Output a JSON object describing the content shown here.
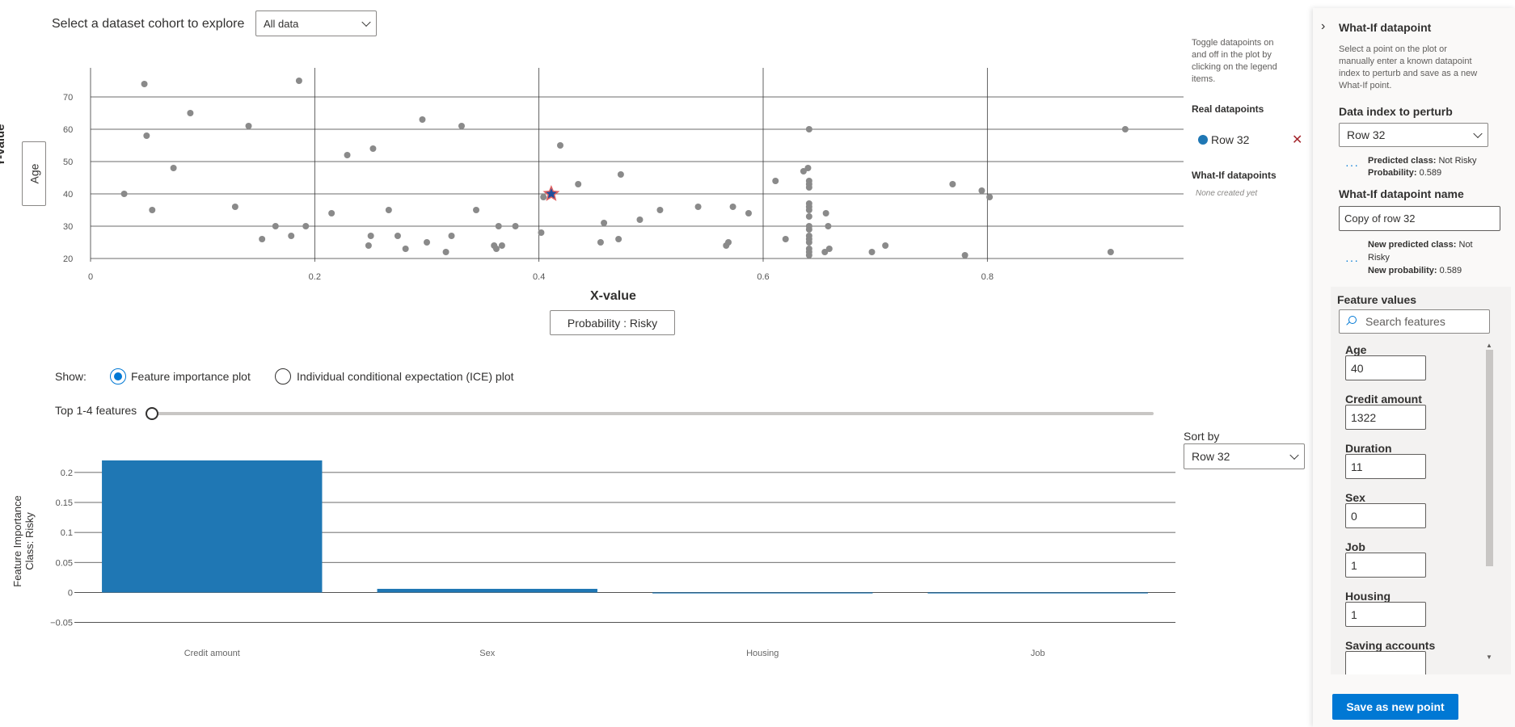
{
  "cohort": {
    "label": "Select a dataset cohort to explore",
    "selected": "All data"
  },
  "scatter": {
    "y_axis_title": "Y-value",
    "y_axis_button": "Age",
    "x_axis_title": "X-value",
    "x_axis_button": "Probability : Risky"
  },
  "legend": {
    "hint": [
      "Toggle datapoints on",
      "and off in the plot by",
      "clicking on the legend",
      "items."
    ],
    "real_heading": "Real datapoints",
    "real_item": "Row 32",
    "whatif_heading": "What-If datapoints",
    "whatif_empty": "None created yet"
  },
  "show": {
    "label": "Show:",
    "option_feature": "Feature importance plot",
    "option_ice": "Individual conditional expectation (ICE) plot",
    "selected": "Feature importance plot"
  },
  "top_features": {
    "label": "Top 1-4 features",
    "value": 0
  },
  "sort": {
    "label": "Sort by",
    "selected": "Row 32"
  },
  "panel": {
    "title": "What-If datapoint",
    "description": [
      "Select a point on the plot or",
      "manually enter a known datapoint",
      "index to perturb and save as a new",
      "What-If point."
    ],
    "data_index_label": "Data index to perturb",
    "data_index_value": "Row 32",
    "pred_class_label": "Predicted class:",
    "pred_class_value": "Not Risky",
    "prob_label": "Probability:",
    "prob_value": "0.589",
    "name_label": "What-If datapoint name",
    "name_value": "Copy of row 32",
    "new_pred_label": "New predicted class:",
    "new_pred_value_1": "Not",
    "new_pred_value_2": "Risky",
    "new_prob_label": "New probability:",
    "new_prob_value": "0.589",
    "feature_values_label": "Feature values",
    "search_placeholder": "Search features",
    "features": [
      {
        "name": "Age",
        "value": "40"
      },
      {
        "name": "Credit amount",
        "value": "1322"
      },
      {
        "name": "Duration",
        "value": "11"
      },
      {
        "name": "Sex",
        "value": "0"
      },
      {
        "name": "Job",
        "value": "1"
      },
      {
        "name": "Housing",
        "value": "1"
      },
      {
        "name": "Saving accounts",
        "value": ""
      }
    ],
    "save_button": "Save as new point"
  },
  "colors": {
    "accent": "#0078d4",
    "bar": "#1f77b4",
    "point": "#8a8a8a",
    "star": "#1f4e9c"
  },
  "chart_data": [
    {
      "type": "scatter",
      "xlabel": "X-value",
      "ylabel": "Y-value",
      "x_ticks": [
        "0",
        "0.2",
        "0.4",
        "0.6",
        "0.8"
      ],
      "y_ticks": [
        "20",
        "30",
        "40",
        "50",
        "60",
        "70"
      ],
      "xlim": [
        0,
        0.975
      ],
      "ylim": [
        19,
        79
      ],
      "highlight": {
        "x": 0.411,
        "y": 40
      },
      "points": [
        [
          0.03,
          40
        ],
        [
          0.048,
          74
        ],
        [
          0.05,
          58
        ],
        [
          0.055,
          35
        ],
        [
          0.074,
          48
        ],
        [
          0.089,
          65
        ],
        [
          0.129,
          36
        ],
        [
          0.141,
          61
        ],
        [
          0.153,
          26
        ],
        [
          0.165,
          30
        ],
        [
          0.179,
          27
        ],
        [
          0.186,
          75
        ],
        [
          0.192,
          30
        ],
        [
          0.215,
          34
        ],
        [
          0.229,
          52
        ],
        [
          0.248,
          24
        ],
        [
          0.25,
          27
        ],
        [
          0.252,
          54
        ],
        [
          0.266,
          35
        ],
        [
          0.274,
          27
        ],
        [
          0.281,
          23
        ],
        [
          0.3,
          25
        ],
        [
          0.296,
          63
        ],
        [
          0.317,
          22
        ],
        [
          0.322,
          27
        ],
        [
          0.331,
          61
        ],
        [
          0.344,
          35
        ],
        [
          0.36,
          24
        ],
        [
          0.362,
          23
        ],
        [
          0.364,
          30
        ],
        [
          0.367,
          24
        ],
        [
          0.379,
          30
        ],
        [
          0.402,
          28
        ],
        [
          0.404,
          39
        ],
        [
          0.419,
          55
        ],
        [
          0.435,
          43
        ],
        [
          0.455,
          25
        ],
        [
          0.458,
          31
        ],
        [
          0.471,
          26
        ],
        [
          0.473,
          46
        ],
        [
          0.49,
          32
        ],
        [
          0.508,
          35
        ],
        [
          0.542,
          36
        ],
        [
          0.567,
          24
        ],
        [
          0.569,
          25
        ],
        [
          0.573,
          36
        ],
        [
          0.587,
          34
        ],
        [
          0.611,
          44
        ],
        [
          0.62,
          26
        ],
        [
          0.636,
          47
        ],
        [
          0.64,
          48
        ],
        [
          0.641,
          60
        ],
        [
          0.641,
          44
        ],
        [
          0.641,
          43
        ],
        [
          0.641,
          42
        ],
        [
          0.641,
          37
        ],
        [
          0.641,
          36
        ],
        [
          0.641,
          35
        ],
        [
          0.641,
          33
        ],
        [
          0.641,
          30
        ],
        [
          0.641,
          29
        ],
        [
          0.641,
          27
        ],
        [
          0.641,
          26
        ],
        [
          0.641,
          25
        ],
        [
          0.641,
          23
        ],
        [
          0.641,
          22
        ],
        [
          0.641,
          21
        ],
        [
          0.656,
          34
        ],
        [
          0.655,
          22
        ],
        [
          0.658,
          30
        ],
        [
          0.659,
          23
        ],
        [
          0.697,
          22
        ],
        [
          0.709,
          24
        ],
        [
          0.769,
          43
        ],
        [
          0.78,
          21
        ],
        [
          0.795,
          41
        ],
        [
          0.802,
          39
        ],
        [
          0.91,
          22
        ],
        [
          0.923,
          60
        ]
      ]
    },
    {
      "type": "bar",
      "ylabel": "Feature Importance Class: Risky",
      "categories": [
        "Credit amount",
        "Sex",
        "Housing",
        "Job"
      ],
      "values": [
        0.22,
        0.006,
        -0.001,
        -0.001
      ],
      "y_ticks": [
        "−0.05",
        "0",
        "0.05",
        "0.1",
        "0.15",
        "0.2"
      ],
      "ylim": [
        -0.06,
        0.22
      ],
      "grid": true
    }
  ]
}
